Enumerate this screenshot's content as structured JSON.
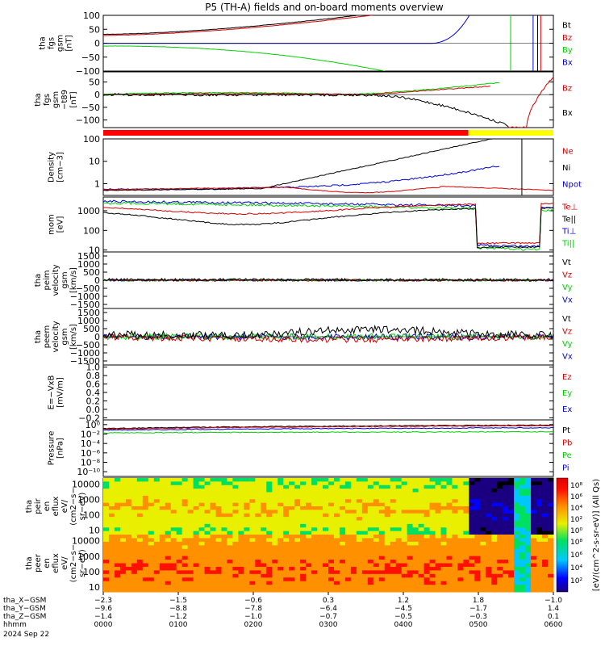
{
  "title": "P5 (TH-A) fields and on-board moments overview",
  "colors": {
    "black": "#000000",
    "red": "#d40000",
    "green": "#00d000",
    "blue": "#0000d8"
  },
  "chart_data": [
    {
      "id": "fgs_gsm",
      "type": "line",
      "ylabel": [
        "tha",
        "fgs",
        "gsm",
        "[nT]"
      ],
      "ylim": [
        -100,
        100
      ],
      "ticks": [
        "100",
        "50",
        "0",
        "−50",
        "−100"
      ],
      "legend": [
        {
          "name": "Bt",
          "color": "black"
        },
        {
          "name": "Bz",
          "color": "red"
        },
        {
          "name": "By",
          "color": "green"
        },
        {
          "name": "Bx",
          "color": "blue"
        }
      ]
    },
    {
      "id": "fgs_t89",
      "type": "line",
      "ylabel": [
        "tha",
        "fgs",
        "gsm",
        "−t89",
        "[nT]"
      ],
      "ylim": [
        -130,
        90
      ],
      "ticks": [
        "50",
        "0",
        "−50",
        "−100"
      ],
      "legend": [
        {
          "name": "Bz",
          "color": "red"
        },
        {
          "name": "Bx",
          "color": "black"
        }
      ]
    },
    {
      "id": "density",
      "type": "line",
      "ylabel": [
        "Density",
        "[cm−3]"
      ],
      "scale": "log",
      "ylim": [
        0.3,
        100
      ],
      "ticks": [
        "100",
        "10",
        "1"
      ],
      "legend": [
        {
          "name": "Ne",
          "color": "red"
        },
        {
          "name": "Ni",
          "color": "black"
        },
        {
          "name": "Npot",
          "color": "blue"
        }
      ]
    },
    {
      "id": "temperature",
      "type": "line",
      "ylabel": [
        "mom",
        "[eV]"
      ],
      "scale": "log",
      "ylim": [
        8,
        5000
      ],
      "ticks": [
        "1000",
        "100",
        "10"
      ],
      "legend": [
        {
          "name": "Te⊥",
          "color": "red"
        },
        {
          "name": "Te||",
          "color": "black"
        },
        {
          "name": "Ti⊥",
          "color": "blue"
        },
        {
          "name": "Ti||",
          "color": "green"
        }
      ]
    },
    {
      "id": "peim_velocity",
      "type": "line",
      "ylabel": [
        "tha",
        "peim",
        "velocity",
        "gsm",
        "[km/s]"
      ],
      "ylim": [
        -1500,
        1500
      ],
      "ticks": [
        "1500",
        "1000",
        "500",
        "0",
        "−500",
        "−1000",
        "−1500"
      ],
      "legend": [
        {
          "name": "Vt",
          "color": "black"
        },
        {
          "name": "Vz",
          "color": "red"
        },
        {
          "name": "Vy",
          "color": "green"
        },
        {
          "name": "Vx",
          "color": "blue"
        }
      ]
    },
    {
      "id": "peem_velocity",
      "type": "line",
      "ylabel": [
        "tha",
        "peem",
        "velocity",
        "gsm",
        "[km/s]"
      ],
      "ylim": [
        -1500,
        1500
      ],
      "ticks": [
        "1500",
        "1000",
        "500",
        "0",
        "−500",
        "−1000",
        "−1500"
      ],
      "legend": [
        {
          "name": "Vt",
          "color": "black"
        },
        {
          "name": "Vz",
          "color": "red"
        },
        {
          "name": "Vy",
          "color": "green"
        },
        {
          "name": "Vx",
          "color": "blue"
        }
      ]
    },
    {
      "id": "efield",
      "type": "line",
      "ylabel": [
        "E=−VxB",
        "[mV/m]"
      ],
      "ylim": [
        -0.1,
        1.0
      ],
      "ticks": [
        "1.0",
        "0.8",
        "0.6",
        "0.4",
        "0.2",
        "0.0",
        "−0.2"
      ],
      "legend": [
        {
          "name": "Ez",
          "color": "red"
        },
        {
          "name": "Ey",
          "color": "green"
        },
        {
          "name": "Ex",
          "color": "blue"
        }
      ]
    },
    {
      "id": "pressure",
      "type": "line",
      "ylabel": [
        "Pressure",
        "[nPa]"
      ],
      "scale": "log",
      "ylim": [
        1e-10,
        10
      ],
      "ticks": [
        "10⁰",
        "10⁻²",
        "10⁻⁴",
        "10⁻⁶",
        "10⁻⁸",
        "10⁻¹⁰"
      ],
      "legend": [
        {
          "name": "Pt",
          "color": "black"
        },
        {
          "name": "Pb",
          "color": "red"
        },
        {
          "name": "Pe",
          "color": "green"
        },
        {
          "name": "Pi",
          "color": "blue"
        }
      ]
    },
    {
      "id": "peir_eflux",
      "type": "heatmap",
      "ylabel": [
        "tha",
        "peir",
        "en",
        "eflux",
        "eV/",
        "(cm2−s−",
        "sr−eV)"
      ],
      "scale": "log",
      "ylim": [
        5,
        25000
      ],
      "ticks": [
        "10000",
        "1000",
        "100",
        "10"
      ]
    },
    {
      "id": "peer_eflux",
      "type": "heatmap",
      "ylabel": [
        "tha",
        "peer",
        "en",
        "eflux",
        "eV/",
        "(cm2−s−",
        "sr−eV)"
      ],
      "scale": "log",
      "ylim": [
        5,
        25000
      ],
      "ticks": [
        "10000",
        "1000",
        "100",
        "10"
      ]
    }
  ],
  "colorbar": {
    "label": "[eV/(cm^2-s-sr-eV)] (All Qs)",
    "ticks_top": [
      "10⁸",
      "10⁶",
      "10⁴",
      "10²",
      "10⁰"
    ],
    "ticks_bottom": [
      "10⁸",
      "10⁶",
      "10⁴",
      "10²"
    ]
  },
  "state_bar": {
    "red_until": "0452",
    "yellow_until": "0600"
  },
  "x_axis": {
    "rows": [
      {
        "label": "tha_X−GSM",
        "values": [
          "−2.3",
          "−1.5",
          "−0.6",
          "0.3",
          "1.2",
          "1.8",
          "−1.0"
        ]
      },
      {
        "label": "tha_Y−GSM",
        "values": [
          "−9.6",
          "−8.8",
          "−7.8",
          "−6.4",
          "−4.5",
          "−1.7",
          "1.4"
        ]
      },
      {
        "label": "tha_Z−GSM",
        "values": [
          "−1.4",
          "−1.2",
          "−1.0",
          "−0.7",
          "−0.5",
          "−0.3",
          "0.1"
        ]
      },
      {
        "label": "hhmm",
        "values": [
          "0000",
          "0100",
          "0200",
          "0300",
          "0400",
          "0500",
          "0600"
        ]
      }
    ],
    "date": "2024 Sep 22"
  }
}
